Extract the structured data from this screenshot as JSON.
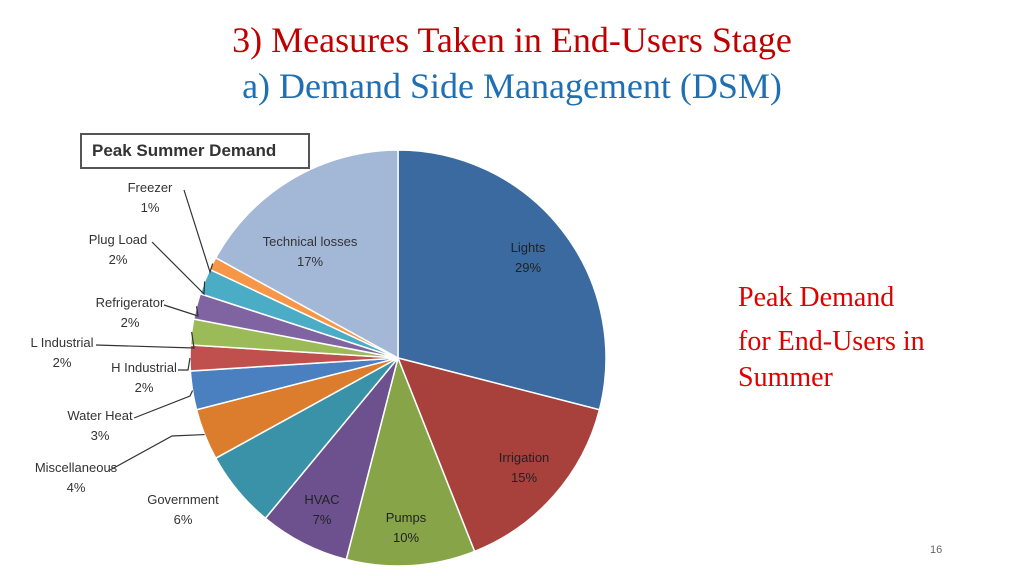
{
  "slide": {
    "title_line1": "3) Measures Taken in End-Users Stage",
    "title_line2": "a) Demand Side Management (DSM)",
    "side_note_line1": "Peak Demand",
    "side_note_line2": "for End-Users in Summer",
    "page_number": "16"
  },
  "colors": {
    "title1": "#c00000",
    "title2": "#1f6fb4",
    "side_note": "#e00000"
  },
  "chart_data": {
    "type": "pie",
    "title": "Peak Summer Demand",
    "start": "12 o'clock, clockwise",
    "slices": [
      {
        "label": "Lights",
        "value": 29,
        "pct_label": "29%",
        "color": "#3a6aa0"
      },
      {
        "label": "Irrigation",
        "value": 15,
        "pct_label": "15%",
        "color": "#a8403c"
      },
      {
        "label": "Pumps",
        "value": 10,
        "pct_label": "10%",
        "color": "#87a548"
      },
      {
        "label": "HVAC",
        "value": 7,
        "pct_label": "7%",
        "color": "#6d518f"
      },
      {
        "label": "Government",
        "value": 6,
        "pct_label": "6%",
        "color": "#3a92a8"
      },
      {
        "label": "Miscellaneous",
        "value": 4,
        "pct_label": "4%",
        "color": "#dc7d2e"
      },
      {
        "label": "Water Heat",
        "value": 3,
        "pct_label": "3%",
        "color": "#4a7fc0"
      },
      {
        "label": "H Industrial",
        "value": 2,
        "pct_label": "2%",
        "color": "#c0504d"
      },
      {
        "label": "L Industrial",
        "value": 2,
        "pct_label": "2%",
        "color": "#9bbb59"
      },
      {
        "label": "Refrigerator",
        "value": 2,
        "pct_label": "2%",
        "color": "#8064a2"
      },
      {
        "label": "Plug Load",
        "value": 2,
        "pct_label": "2%",
        "color": "#4bacc6"
      },
      {
        "label": "Freezer",
        "value": 1,
        "pct_label": "1%",
        "color": "#f79646"
      },
      {
        "label": "Technical losses",
        "value": 17,
        "pct_label": "17%",
        "color": "#a3b7d7"
      }
    ]
  }
}
